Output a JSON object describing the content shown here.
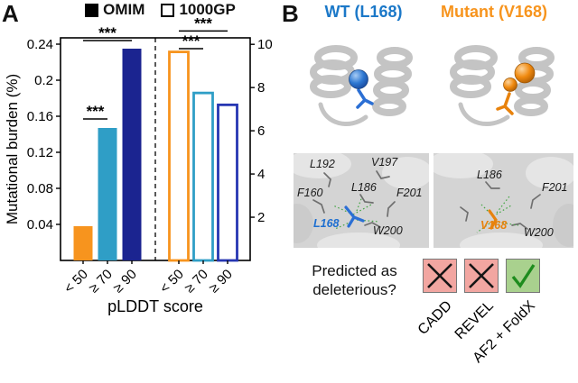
{
  "figure": {
    "panel_a_label": "A",
    "panel_b_label": "B"
  },
  "panel_a": {
    "legend": [
      {
        "label": "OMIM",
        "style": "filled"
      },
      {
        "label": "1000GP",
        "style": "open"
      }
    ],
    "chart_data": {
      "type": "bar",
      "xlabel": "pLDDT score",
      "ylabel": "Mutational burden (%)",
      "categories": [
        "< 50",
        "≥ 70",
        "≥ 90"
      ],
      "left_axis": {
        "min": 0,
        "max": 0.247,
        "ticks": [
          0.04,
          0.08,
          0.12,
          0.16,
          0.2,
          0.24
        ]
      },
      "right_axis": {
        "min": 0,
        "max": 10.3,
        "ticks": [
          2,
          4,
          6,
          8,
          10
        ]
      },
      "series": [
        {
          "name": "OMIM",
          "axis": "left",
          "style": "filled",
          "colors": [
            "#F7941E",
            "#2F9EC6",
            "#1B2490"
          ],
          "values": [
            0.038,
            0.147,
            0.235
          ]
        },
        {
          "name": "1000GP",
          "axis": "right",
          "style": "open",
          "colors": [
            "#F7941E",
            "#2F9EC6",
            "#2636B2"
          ],
          "values": [
            9.65,
            7.75,
            7.2
          ]
        }
      ],
      "significance": [
        {
          "series": 0,
          "from": 0,
          "to": 1,
          "at": 0.157,
          "label": "***"
        },
        {
          "series": 0,
          "from": 0,
          "to": 2,
          "at": 0.244,
          "label": "***"
        },
        {
          "series": 1,
          "from": 0,
          "to": 1,
          "at": 9.8,
          "label": "***"
        },
        {
          "series": 1,
          "from": 0,
          "to": 2,
          "at": 10.62,
          "label": "***"
        }
      ],
      "separator": "dashed"
    }
  },
  "panel_b": {
    "headers": {
      "wt": "WT (L168)",
      "wt_color": "#1B78C8",
      "mutant": "Mutant (V168)",
      "mutant_color": "#F7941D"
    },
    "zoom_wt": {
      "residues": [
        "L192",
        "V197",
        "F160",
        "L186",
        "F201",
        "W200"
      ],
      "highlight": "L168"
    },
    "zoom_mut": {
      "residues": [
        "L186",
        "F201",
        "W200"
      ],
      "highlight": "V168"
    },
    "question_line1": "Predicted as",
    "question_line2": "deleterious?",
    "predictors": [
      {
        "label": "CADD",
        "verdict": "no"
      },
      {
        "label": "REVEL",
        "verdict": "no"
      },
      {
        "label": "AF2 + FoldX",
        "verdict": "yes"
      }
    ],
    "verdict_colors": {
      "no_bg": "#F2A6A1",
      "yes_bg": "#A9D18E",
      "cross": "#151515",
      "check": "#1E8C1E",
      "border": "#777777"
    }
  }
}
